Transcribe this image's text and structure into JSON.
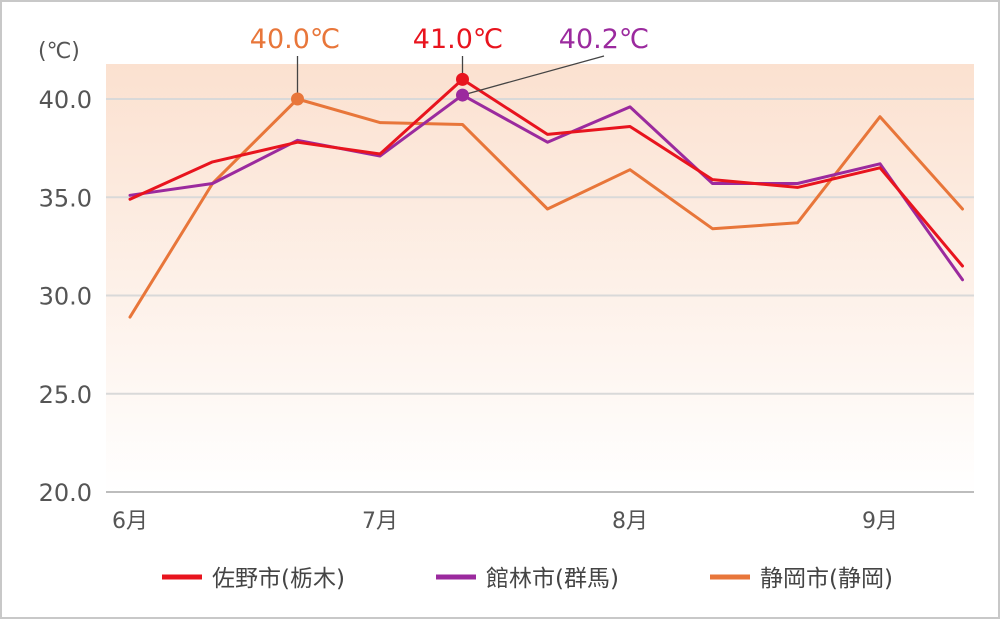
{
  "chart_data": {
    "type": "line",
    "unit_label": "(℃)",
    "ylim": [
      20,
      41.8
    ],
    "yticks": [
      20.0,
      25.0,
      30.0,
      35.0,
      40.0
    ],
    "ytick_labels": [
      "20.0",
      "25.0",
      "30.0",
      "35.0",
      "40.0"
    ],
    "xlim": [
      6.0,
      9.5
    ],
    "month_ticks": [
      {
        "x": 6,
        "label": "6月"
      },
      {
        "x": 7,
        "label": "7月"
      },
      {
        "x": 8,
        "label": "8月"
      },
      {
        "x": 9,
        "label": "9月"
      }
    ],
    "x": [
      6.0,
      6.33,
      6.67,
      7.0,
      7.33,
      7.67,
      8.0,
      8.33,
      8.67,
      9.0,
      9.33
    ],
    "series": [
      {
        "name": "佐野市(栃木)",
        "color": "#e8141e",
        "values": [
          34.9,
          36.8,
          37.8,
          37.2,
          41.0,
          38.2,
          38.6,
          35.9,
          35.5,
          36.5,
          31.5
        ]
      },
      {
        "name": "館林市(群馬)",
        "color": "#9b2a9e",
        "values": [
          35.1,
          35.7,
          37.9,
          37.1,
          40.2,
          37.8,
          39.6,
          35.7,
          35.7,
          36.7,
          30.8
        ]
      },
      {
        "name": "静岡市(静岡)",
        "color": "#e8763a",
        "values": [
          28.9,
          35.7,
          40.0,
          38.8,
          38.7,
          34.4,
          36.4,
          33.4,
          33.7,
          39.1,
          34.4
        ]
      }
    ],
    "annotations": [
      {
        "text": "40.0℃",
        "series": 2,
        "index": 2,
        "color": "#e8763a"
      },
      {
        "text": "41.0℃",
        "series": 0,
        "index": 4,
        "color": "#e8141e"
      },
      {
        "text": "40.2℃",
        "series": 1,
        "index": 4,
        "color": "#9b2a9e"
      }
    ],
    "grid": true,
    "legend_position": "bottom",
    "background_gradient": [
      "#fbe1d0",
      "#ffffff"
    ]
  }
}
